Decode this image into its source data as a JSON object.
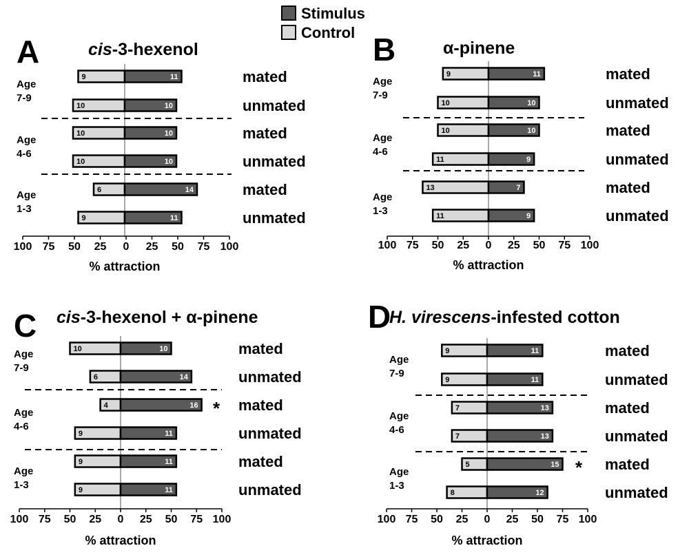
{
  "legend": [
    {
      "label": "Stimulus",
      "color": "#5a5a5a"
    },
    {
      "label": "Control",
      "color": "#d9d9d9"
    }
  ],
  "colors": {
    "stimulus": "#5a5a5a",
    "control": "#d9d9d9",
    "axis": "#000000",
    "midline": "#8c8c8c"
  },
  "chart_data": [
    {
      "type": "bar",
      "panel": "A",
      "title_parts": [
        {
          "text": "cis",
          "italic": true
        },
        {
          "text": "-3-hexenol",
          "italic": false
        }
      ],
      "xlabel": "% attraction",
      "xlim": [
        -100,
        100
      ],
      "xticks": [
        "100",
        "75",
        "50",
        "25",
        "0",
        "25",
        "50",
        "75",
        "100"
      ],
      "age_groups": [
        {
          "label": [
            "Age",
            "7-9"
          ],
          "rows": [
            {
              "status": "mated",
              "control": 9,
              "stimulus": 11,
              "significant": false
            },
            {
              "status": "unmated",
              "control": 10,
              "stimulus": 10,
              "significant": false
            }
          ]
        },
        {
          "label": [
            "Age",
            "4-6"
          ],
          "rows": [
            {
              "status": "mated",
              "control": 10,
              "stimulus": 10,
              "significant": false
            },
            {
              "status": "unmated",
              "control": 10,
              "stimulus": 10,
              "significant": false
            }
          ]
        },
        {
          "label": [
            "Age",
            "1-3"
          ],
          "rows": [
            {
              "status": "mated",
              "control": 6,
              "stimulus": 14,
              "significant": false
            },
            {
              "status": "unmated",
              "control": 9,
              "stimulus": 11,
              "significant": false
            }
          ]
        }
      ]
    },
    {
      "type": "bar",
      "panel": "B",
      "title_parts": [
        {
          "text": "α-pinene",
          "italic": false
        }
      ],
      "xlabel": "% attraction",
      "xlim": [
        -100,
        100
      ],
      "xticks": [
        "100",
        "75",
        "50",
        "25",
        "0",
        "25",
        "50",
        "75",
        "100"
      ],
      "age_groups": [
        {
          "label": [
            "Age",
            "7-9"
          ],
          "rows": [
            {
              "status": "mated",
              "control": 9,
              "stimulus": 11,
              "significant": false
            },
            {
              "status": "unmated",
              "control": 10,
              "stimulus": 10,
              "significant": false
            }
          ]
        },
        {
          "label": [
            "Age",
            "4-6"
          ],
          "rows": [
            {
              "status": "mated",
              "control": 10,
              "stimulus": 10,
              "significant": false
            },
            {
              "status": "unmated",
              "control": 11,
              "stimulus": 9,
              "significant": false
            }
          ]
        },
        {
          "label": [
            "Age",
            "1-3"
          ],
          "rows": [
            {
              "status": "mated",
              "control": 13,
              "stimulus": 7,
              "significant": false
            },
            {
              "status": "unmated",
              "control": 11,
              "stimulus": 9,
              "significant": false
            }
          ]
        }
      ]
    },
    {
      "type": "bar",
      "panel": "C",
      "title_parts": [
        {
          "text": "cis",
          "italic": true
        },
        {
          "text": "-3-hexenol + α-pinene",
          "italic": false
        }
      ],
      "xlabel": "% attraction",
      "xlim": [
        -100,
        100
      ],
      "xticks": [
        "100",
        "75",
        "50",
        "25",
        "0",
        "25",
        "50",
        "75",
        "100"
      ],
      "age_groups": [
        {
          "label": [
            "Age",
            "7-9"
          ],
          "rows": [
            {
              "status": "mated",
              "control": 10,
              "stimulus": 10,
              "significant": false
            },
            {
              "status": "unmated",
              "control": 6,
              "stimulus": 14,
              "significant": false
            }
          ]
        },
        {
          "label": [
            "Age",
            "4-6"
          ],
          "rows": [
            {
              "status": "mated",
              "control": 4,
              "stimulus": 16,
              "significant": true
            },
            {
              "status": "unmated",
              "control": 9,
              "stimulus": 11,
              "significant": false
            }
          ]
        },
        {
          "label": [
            "Age",
            "1-3"
          ],
          "rows": [
            {
              "status": "mated",
              "control": 9,
              "stimulus": 11,
              "significant": false
            },
            {
              "status": "unmated",
              "control": 9,
              "stimulus": 11,
              "significant": false
            }
          ]
        }
      ]
    },
    {
      "type": "bar",
      "panel": "D",
      "title_parts": [
        {
          "text": "H. virescens",
          "italic": true
        },
        {
          "text": "-infested cotton",
          "italic": false
        }
      ],
      "xlabel": "% attraction",
      "xlim": [
        -100,
        100
      ],
      "xticks": [
        "100",
        "75",
        "50",
        "25",
        "0",
        "25",
        "50",
        "75",
        "100"
      ],
      "age_groups": [
        {
          "label": [
            "Age",
            "7-9"
          ],
          "rows": [
            {
              "status": "mated",
              "control": 9,
              "stimulus": 11,
              "significant": false
            },
            {
              "status": "unmated",
              "control": 9,
              "stimulus": 11,
              "significant": false
            }
          ]
        },
        {
          "label": [
            "Age",
            "4-6"
          ],
          "rows": [
            {
              "status": "mated",
              "control": 7,
              "stimulus": 13,
              "significant": false
            },
            {
              "status": "unmated",
              "control": 7,
              "stimulus": 13,
              "significant": false
            }
          ]
        },
        {
          "label": [
            "Age",
            "1-3"
          ],
          "rows": [
            {
              "status": "mated",
              "control": 5,
              "stimulus": 15,
              "significant": true
            },
            {
              "status": "unmated",
              "control": 8,
              "stimulus": 12,
              "significant": false
            }
          ]
        }
      ]
    }
  ]
}
